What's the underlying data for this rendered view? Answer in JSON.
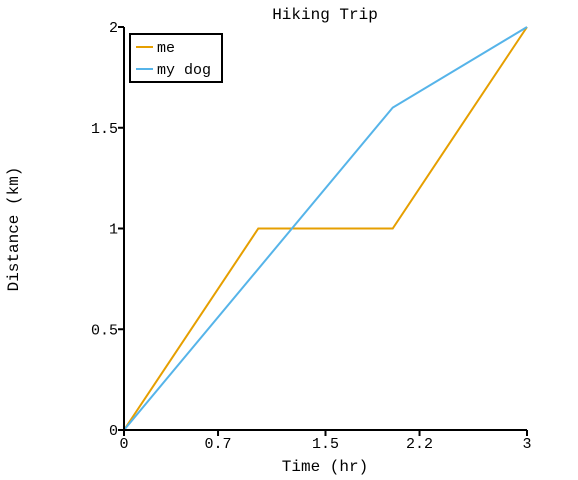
{
  "chart_data": {
    "type": "line",
    "title": "Hiking Trip",
    "xlabel": "Time (hr)",
    "ylabel": "Distance (km)",
    "xlim": [
      0,
      3
    ],
    "ylim": [
      0,
      2
    ],
    "x_ticks": [
      {
        "value": 0,
        "label": "0"
      },
      {
        "value": 0.7,
        "label": "0.7"
      },
      {
        "value": 1.5,
        "label": "1.5"
      },
      {
        "value": 2.2,
        "label": "2.2"
      },
      {
        "value": 3,
        "label": "3"
      }
    ],
    "y_ticks": [
      {
        "value": 0,
        "label": "0"
      },
      {
        "value": 0.5,
        "label": "0.5"
      },
      {
        "value": 1,
        "label": "1"
      },
      {
        "value": 1.5,
        "label": "1.5"
      },
      {
        "value": 2,
        "label": "2"
      }
    ],
    "legend": "top-left",
    "grid": false,
    "series": [
      {
        "name": "me",
        "color": "#E69F00",
        "x": [
          0,
          1,
          2,
          3
        ],
        "y": [
          0,
          1,
          1,
          2
        ]
      },
      {
        "name": "my dog",
        "color": "#56B4E9",
        "x": [
          0,
          2,
          3
        ],
        "y": [
          0,
          1.6,
          2
        ]
      }
    ]
  }
}
